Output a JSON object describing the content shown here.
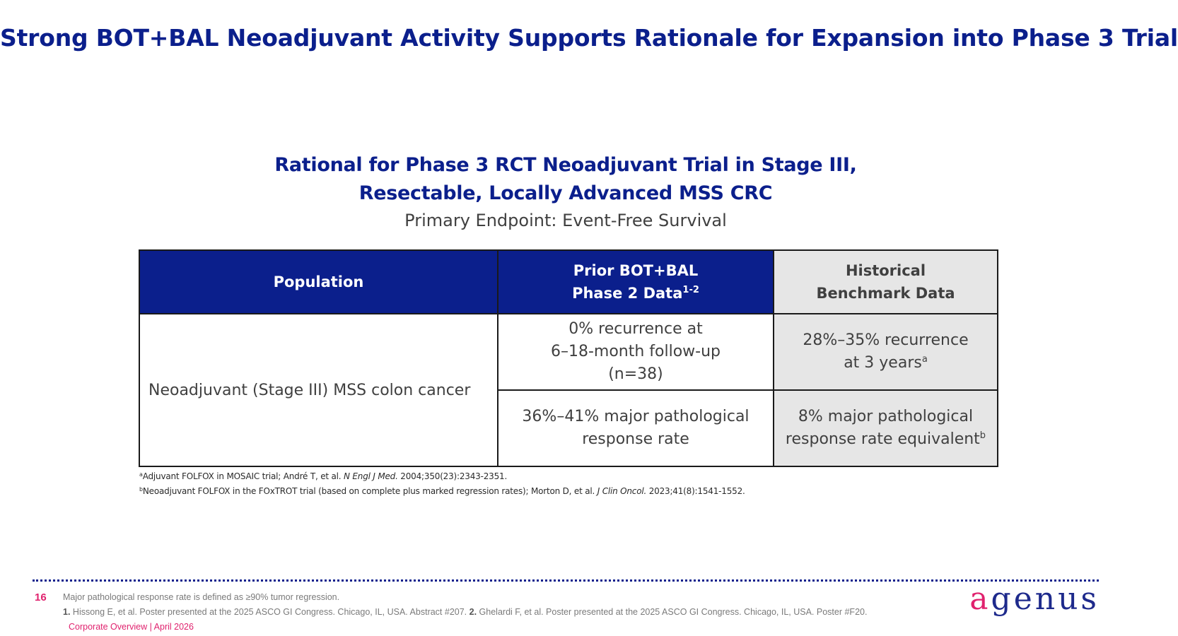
{
  "title": "Strong BOT+BAL Neoadjuvant Activity Supports Rationale for Expansion into Phase 3 Trial",
  "subheading": {
    "line1": "Rational for Phase 3 RCT Neoadjuvant Trial in Stage III,",
    "line2": "Resectable, Locally Advanced MSS CRC",
    "endpoint": "Primary Endpoint: Event-Free Survival"
  },
  "table": {
    "headers": {
      "population": "Population",
      "prior_line1": "Prior BOT+BAL",
      "prior_line2": "Phase 2 Data",
      "prior_sup": "1-2",
      "historical_line1": "Historical",
      "historical_line2": "Benchmark Data"
    },
    "population": "Neoadjuvant (Stage III) MSS colon cancer",
    "row1": {
      "prior_line1": "0% recurrence at",
      "prior_line2": "6–18-month follow-up",
      "prior_line3": "(n=38)",
      "historical_line1": "28%–35% recurrence",
      "historical_line2": "at 3 years",
      "historical_sup": "a"
    },
    "row2": {
      "prior_line1": "36%–41% major pathological",
      "prior_line2": "response rate",
      "historical_line1": "8% major pathological",
      "historical_line2": "response rate equivalent",
      "historical_sup": "b"
    }
  },
  "table_notes": {
    "a_sup": "a",
    "a_text": "Adjuvant FOLFOX in MOSAIC trial; André T, et al. ",
    "a_journal": "N Engl J Med.",
    "a_cite": " 2004;350(23):2343-2351.",
    "b_sup": "b",
    "b_text": "Neoadjuvant FOLFOX in the FOxTROT trial (based on complete plus marked regression rates); Morton D, et al. ",
    "b_journal": "J Clin Oncol.",
    "b_cite": " 2023;41(8):1541-1552."
  },
  "footer": {
    "page_number": "16",
    "definition": "Major pathological response rate is defined as ≥90% tumor regression.",
    "ref1_num": "1.",
    "ref1_text": " Hissong E, et al. Poster presented at the 2025 ASCO GI Congress. Chicago, IL, USA. Abstract #207. ",
    "ref2_num": "2.",
    "ref2_text": " Ghelardi F, et al. Poster presented at the 2025 ASCO GI Congress. Chicago, IL, USA. Poster #F20.",
    "deck_label": "Corporate Overview | April 2026",
    "logo_first": "a",
    "logo_rest": "genus"
  },
  "colors": {
    "brand_blue": "#0b1f8c",
    "brand_pink": "#e0226e",
    "benchmark_gray": "#e6e6e6"
  }
}
